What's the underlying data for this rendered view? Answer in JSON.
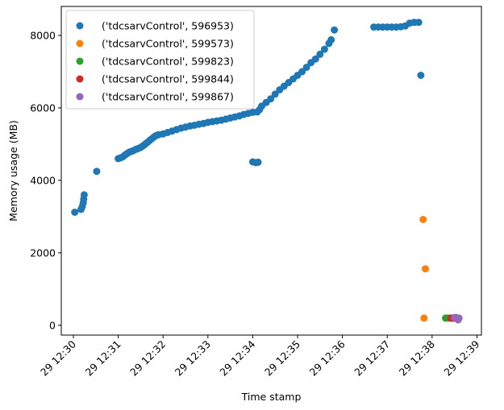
{
  "chart_data": {
    "type": "scatter",
    "title": "",
    "xlabel": "Time stamp",
    "ylabel": "Memory usage (MB)",
    "x_unit": "minutes after 12:30 on day 29",
    "xlim": [
      -0.27,
      9.1
    ],
    "ylim": [
      -270,
      8800
    ],
    "x_ticks": [
      {
        "value": 0,
        "label": "29 12:30"
      },
      {
        "value": 1,
        "label": "29 12:31"
      },
      {
        "value": 2,
        "label": "29 12:32"
      },
      {
        "value": 3,
        "label": "29 12:33"
      },
      {
        "value": 4,
        "label": "29 12:34"
      },
      {
        "value": 5,
        "label": "29 12:35"
      },
      {
        "value": 6,
        "label": "29 12:36"
      },
      {
        "value": 7,
        "label": "29 12:37"
      },
      {
        "value": 8,
        "label": "29 12:38"
      },
      {
        "value": 9,
        "label": "29 12:39"
      }
    ],
    "y_ticks": [
      {
        "value": 0,
        "label": "0"
      },
      {
        "value": 2000,
        "label": "2000"
      },
      {
        "value": 4000,
        "label": "4000"
      },
      {
        "value": 6000,
        "label": "6000"
      },
      {
        "value": 8000,
        "label": "8000"
      }
    ],
    "grid": false,
    "legend_position": "top-left",
    "series": [
      {
        "name": "('tdcsarvControl', 596953)",
        "color": "#1f77b4",
        "points": [
          [
            0.03,
            3120
          ],
          [
            0.17,
            3200
          ],
          [
            0.2,
            3280
          ],
          [
            0.22,
            3380
          ],
          [
            0.23,
            3480
          ],
          [
            0.24,
            3600
          ],
          [
            0.52,
            4250
          ],
          [
            1.0,
            4600
          ],
          [
            1.05,
            4620
          ],
          [
            1.1,
            4650
          ],
          [
            1.15,
            4700
          ],
          [
            1.2,
            4740
          ],
          [
            1.25,
            4780
          ],
          [
            1.3,
            4800
          ],
          [
            1.35,
            4830
          ],
          [
            1.4,
            4860
          ],
          [
            1.45,
            4880
          ],
          [
            1.5,
            4910
          ],
          [
            1.55,
            4950
          ],
          [
            1.6,
            5000
          ],
          [
            1.65,
            5050
          ],
          [
            1.7,
            5100
          ],
          [
            1.75,
            5150
          ],
          [
            1.8,
            5200
          ],
          [
            1.85,
            5240
          ],
          [
            1.9,
            5260
          ],
          [
            2.0,
            5280
          ],
          [
            2.1,
            5320
          ],
          [
            2.2,
            5360
          ],
          [
            2.3,
            5400
          ],
          [
            2.4,
            5440
          ],
          [
            2.5,
            5470
          ],
          [
            2.6,
            5500
          ],
          [
            2.7,
            5520
          ],
          [
            2.8,
            5550
          ],
          [
            2.9,
            5570
          ],
          [
            3.0,
            5600
          ],
          [
            3.1,
            5620
          ],
          [
            3.2,
            5640
          ],
          [
            3.3,
            5660
          ],
          [
            3.4,
            5690
          ],
          [
            3.5,
            5720
          ],
          [
            3.6,
            5750
          ],
          [
            3.7,
            5780
          ],
          [
            3.8,
            5820
          ],
          [
            3.9,
            5850
          ],
          [
            4.0,
            5880
          ],
          [
            4.1,
            5890
          ],
          [
            4.0,
            4510
          ],
          [
            4.07,
            4490
          ],
          [
            4.12,
            4500
          ],
          [
            4.15,
            5950
          ],
          [
            4.2,
            6050
          ],
          [
            4.3,
            6150
          ],
          [
            4.4,
            6250
          ],
          [
            4.5,
            6380
          ],
          [
            4.6,
            6500
          ],
          [
            4.7,
            6600
          ],
          [
            4.8,
            6700
          ],
          [
            4.9,
            6800
          ],
          [
            5.0,
            6900
          ],
          [
            5.1,
            7000
          ],
          [
            5.2,
            7120
          ],
          [
            5.3,
            7250
          ],
          [
            5.4,
            7350
          ],
          [
            5.5,
            7480
          ],
          [
            5.6,
            7620
          ],
          [
            5.7,
            7780
          ],
          [
            5.75,
            7880
          ],
          [
            5.82,
            8150
          ],
          [
            6.7,
            8230
          ],
          [
            6.8,
            8230
          ],
          [
            6.9,
            8230
          ],
          [
            7.0,
            8230
          ],
          [
            7.1,
            8230
          ],
          [
            7.2,
            8230
          ],
          [
            7.3,
            8240
          ],
          [
            7.4,
            8260
          ],
          [
            7.5,
            8340
          ],
          [
            7.6,
            8360
          ],
          [
            7.7,
            8360
          ],
          [
            7.75,
            6900
          ]
        ]
      },
      {
        "name": "('tdcsarvControl', 599573)",
        "color": "#ff7f0e",
        "points": [
          [
            7.8,
            2920
          ],
          [
            7.85,
            1560
          ],
          [
            7.82,
            200
          ]
        ]
      },
      {
        "name": "('tdcsarvControl', 599823)",
        "color": "#2ca02c",
        "points": [
          [
            8.3,
            200
          ],
          [
            8.35,
            200
          ],
          [
            8.4,
            200
          ],
          [
            8.45,
            200
          ]
        ]
      },
      {
        "name": "('tdcsarvControl', 599844)",
        "color": "#d62728",
        "points": [
          [
            8.42,
            200
          ],
          [
            8.45,
            200
          ],
          [
            8.48,
            200
          ],
          [
            8.5,
            200
          ]
        ]
      },
      {
        "name": "('tdcsarvControl', 599867)",
        "color": "#9467bd",
        "points": [
          [
            8.5,
            210
          ],
          [
            8.53,
            220
          ],
          [
            8.56,
            200
          ],
          [
            8.58,
            150
          ],
          [
            8.6,
            200
          ]
        ]
      }
    ]
  }
}
